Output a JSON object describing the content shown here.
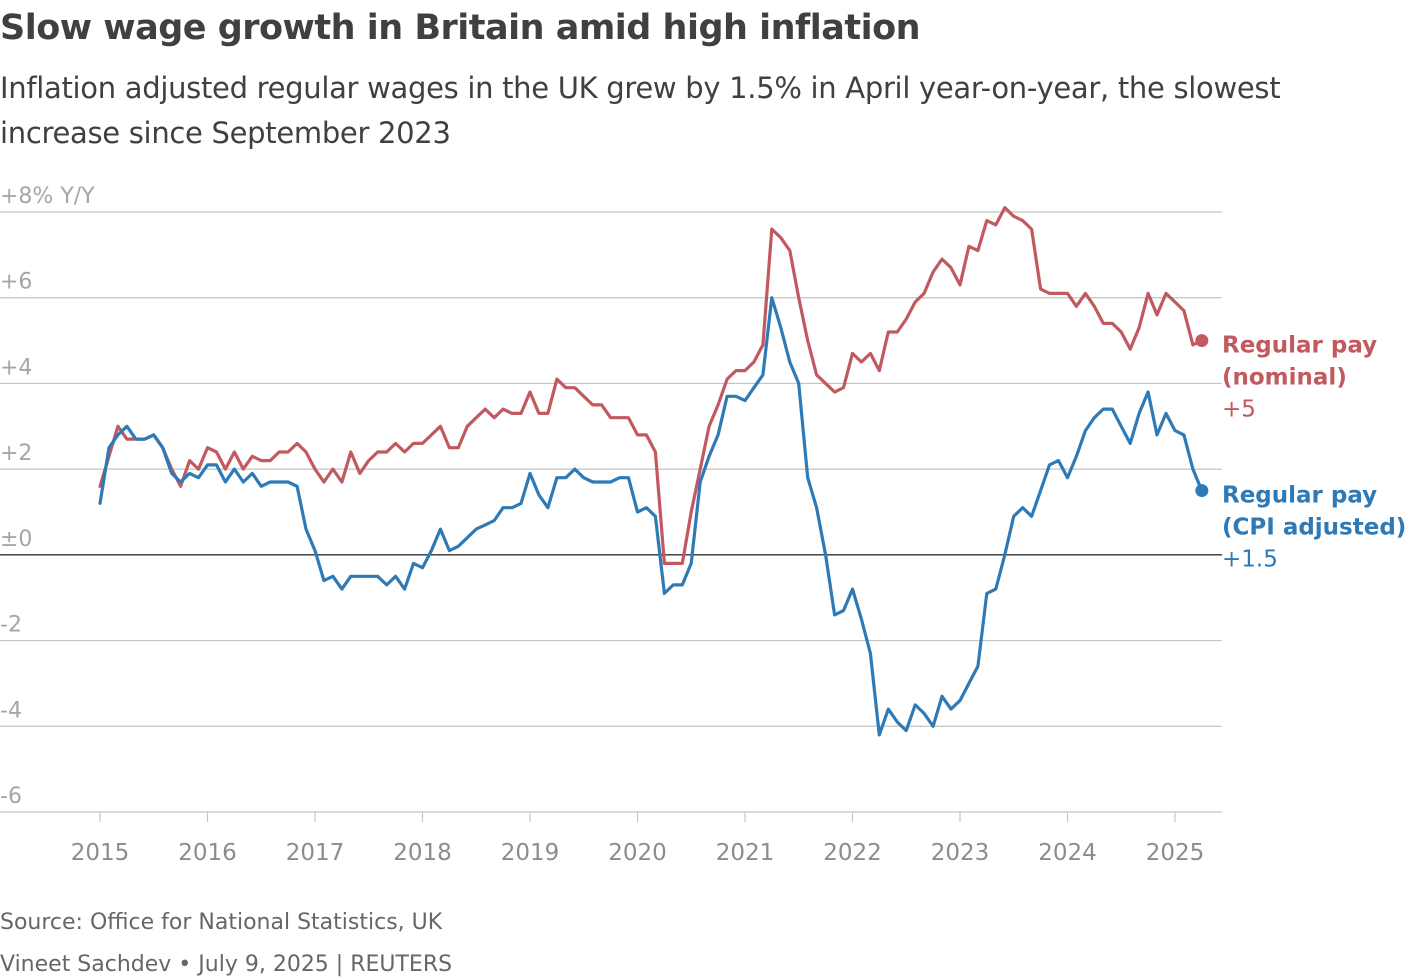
{
  "header": {
    "title": "Slow wage growth in Britain amid high inflation",
    "subtitle": "Inflation adjusted regular wages in the UK grew by 1.5% in April year-on-year, the slowest increase since September 2023"
  },
  "footer": {
    "source": "Source: Office for National Statistics, UK",
    "credit": "Vineet Sachdev • July 9, 2025 | REUTERS"
  },
  "colors": {
    "nominal": "#c1595f",
    "adjusted": "#2e7ab6",
    "grid": "#c4c4c4",
    "zero": "#333333",
    "tick_text": "#a6a6a6",
    "axis_text": "#8c8c8c"
  },
  "chart_data": {
    "type": "line",
    "title": "Slow wage growth in Britain amid high inflation",
    "ylabel": "Y/Y",
    "ylim": [
      -6,
      8
    ],
    "xlim": [
      2015,
      2025.5
    ],
    "y_ticks": [
      {
        "value": 8,
        "label": "+8% Y/Y"
      },
      {
        "value": 6,
        "label": "+6"
      },
      {
        "value": 4,
        "label": "+4"
      },
      {
        "value": 2,
        "label": "+2"
      },
      {
        "value": 0,
        "label": "±0"
      },
      {
        "value": -2,
        "label": "-2"
      },
      {
        "value": -4,
        "label": "-4"
      },
      {
        "value": -6,
        "label": "-6"
      }
    ],
    "x_ticks": [
      {
        "value": 2015,
        "label": "2015"
      },
      {
        "value": 2016,
        "label": "2016"
      },
      {
        "value": 2017,
        "label": "2017"
      },
      {
        "value": 2018,
        "label": "2018"
      },
      {
        "value": 2019,
        "label": "2019"
      },
      {
        "value": 2020,
        "label": "2020"
      },
      {
        "value": 2021,
        "label": "2021"
      },
      {
        "value": 2022,
        "label": "2022"
      },
      {
        "value": 2023,
        "label": "2023"
      },
      {
        "value": 2024,
        "label": "2024"
      },
      {
        "value": 2025,
        "label": "2025"
      }
    ],
    "x_start": 2015,
    "x_step": 0.08333,
    "series": [
      {
        "name": "Regular pay (nominal)",
        "label_lines": [
          "Regular pay",
          "(nominal)"
        ],
        "end_value_label": "+5",
        "color_key": "nominal",
        "values": [
          1.6,
          2.3,
          3.0,
          2.7,
          2.7,
          2.7,
          2.8,
          2.5,
          2.0,
          1.6,
          2.2,
          2.0,
          2.5,
          2.4,
          2.0,
          2.4,
          2.0,
          2.3,
          2.2,
          2.2,
          2.4,
          2.4,
          2.6,
          2.4,
          2.0,
          1.7,
          2.0,
          1.7,
          2.4,
          1.9,
          2.2,
          2.4,
          2.4,
          2.6,
          2.4,
          2.6,
          2.6,
          2.8,
          3.0,
          2.5,
          2.5,
          3.0,
          3.2,
          3.4,
          3.2,
          3.4,
          3.3,
          3.3,
          3.8,
          3.3,
          3.3,
          4.1,
          3.9,
          3.9,
          3.7,
          3.5,
          3.5,
          3.2,
          3.2,
          3.2,
          2.8,
          2.8,
          2.4,
          -0.2,
          -0.2,
          -0.2,
          1.0,
          2.0,
          3.0,
          3.5,
          4.1,
          4.3,
          4.3,
          4.5,
          4.9,
          7.6,
          7.4,
          7.1,
          6.0,
          5.0,
          4.2,
          4.0,
          3.8,
          3.9,
          4.7,
          4.5,
          4.7,
          4.3,
          5.2,
          5.2,
          5.5,
          5.9,
          6.1,
          6.6,
          6.9,
          6.7,
          6.3,
          7.2,
          7.1,
          7.8,
          7.7,
          8.1,
          7.9,
          7.8,
          7.6,
          6.2,
          6.1,
          6.1,
          6.1,
          5.8,
          6.1,
          5.8,
          5.4,
          5.4,
          5.2,
          4.8,
          5.3,
          6.1,
          5.6,
          6.1,
          5.9,
          5.7,
          4.9,
          5.0
        ]
      },
      {
        "name": "Regular pay (CPI adjusted)",
        "label_lines": [
          "Regular pay",
          "(CPI adjusted)"
        ],
        "end_value_label": "+1.5",
        "color_key": "adjusted",
        "values": [
          1.2,
          2.5,
          2.8,
          3.0,
          2.7,
          2.7,
          2.8,
          2.5,
          1.9,
          1.7,
          1.9,
          1.8,
          2.1,
          2.1,
          1.7,
          2.0,
          1.7,
          1.9,
          1.6,
          1.7,
          1.7,
          1.7,
          1.6,
          0.6,
          0.1,
          -0.6,
          -0.5,
          -0.8,
          -0.5,
          -0.5,
          -0.5,
          -0.5,
          -0.7,
          -0.5,
          -0.8,
          -0.2,
          -0.3,
          0.1,
          0.6,
          0.1,
          0.2,
          0.4,
          0.6,
          0.7,
          0.8,
          1.1,
          1.1,
          1.2,
          1.9,
          1.4,
          1.1,
          1.8,
          1.8,
          2.0,
          1.8,
          1.7,
          1.7,
          1.7,
          1.8,
          1.8,
          1.0,
          1.1,
          0.9,
          -0.9,
          -0.7,
          -0.7,
          -0.2,
          1.7,
          2.3,
          2.8,
          3.7,
          3.7,
          3.6,
          3.9,
          4.2,
          6.0,
          5.3,
          4.5,
          4.0,
          1.8,
          1.1,
          0.0,
          -1.4,
          -1.3,
          -0.8,
          -1.5,
          -2.3,
          -4.2,
          -3.6,
          -3.9,
          -4.1,
          -3.5,
          -3.7,
          -4.0,
          -3.3,
          -3.6,
          -3.4,
          -3.0,
          -2.6,
          -0.9,
          -0.8,
          0.0,
          0.9,
          1.1,
          0.9,
          1.5,
          2.1,
          2.2,
          1.8,
          2.3,
          2.9,
          3.2,
          3.4,
          3.4,
          3.0,
          2.6,
          3.3,
          3.8,
          2.8,
          3.3,
          2.9,
          2.8,
          2.0,
          1.5
        ]
      }
    ]
  }
}
